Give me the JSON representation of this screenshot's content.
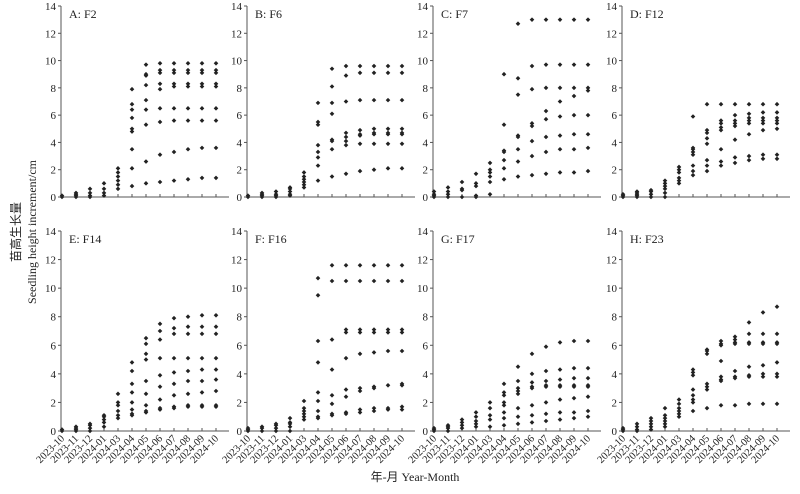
{
  "figure": {
    "ylabel_cn": "苗高生长量",
    "ylabel_en": "Seedling height increment/cm",
    "xlabel": "年-月 Year-Month",
    "categories": [
      "2023-10",
      "2023-11",
      "2023-12",
      "2024-01",
      "2024-03",
      "2024-04",
      "2024-05",
      "2024-06",
      "2024-07",
      "2024-08",
      "2024-09",
      "2024-10"
    ],
    "ylim": [
      0,
      14
    ],
    "yticks": [
      "0",
      "2",
      "4",
      "6",
      "8",
      "10",
      "12",
      "14"
    ],
    "marker_color": "#222222"
  },
  "chart_data": [
    {
      "type": "scatter",
      "title": "A: F2",
      "values": [
        [
          0,
          0.1
        ],
        [
          0,
          0.1,
          0.2,
          0.3
        ],
        [
          0,
          0.1,
          0.3,
          0.6
        ],
        [
          0.1,
          0.3,
          0.6,
          1.0
        ],
        [
          0.6,
          0.9,
          1.2,
          1.5,
          1.8,
          2.1
        ],
        [
          0.8,
          2.1,
          3.5,
          4.8,
          5,
          5.8,
          6.4,
          6.8,
          7.9
        ],
        [
          1,
          2.6,
          5.3,
          6.4,
          7.1,
          8.2,
          8.9,
          9,
          9.7
        ],
        [
          1.1,
          3.1,
          5.5,
          6.5,
          7.9,
          8.3,
          9.1,
          9.3,
          9.8
        ],
        [
          1.2,
          3.3,
          5.6,
          6.5,
          8.1,
          8.3,
          9.1,
          9.3,
          9.8
        ],
        [
          1.3,
          3.5,
          5.6,
          6.5,
          8.1,
          8.3,
          9.1,
          9.3,
          9.8
        ],
        [
          1.4,
          3.6,
          5.6,
          6.5,
          8.1,
          8.3,
          9.1,
          9.3,
          9.8
        ],
        [
          1.4,
          3.6,
          5.6,
          6.5,
          8.1,
          8.3,
          9.1,
          9.3,
          9.8
        ]
      ]
    },
    {
      "type": "scatter",
      "title": "B: F6",
      "values": [
        [
          0,
          0.1
        ],
        [
          0,
          0.1,
          0.2,
          0.3
        ],
        [
          0,
          0.1,
          0.2,
          0.4
        ],
        [
          0.1,
          0.2,
          0.4,
          0.6,
          0.7
        ],
        [
          0.7,
          0.9,
          1.1,
          1.3,
          1.5,
          1.8
        ],
        [
          1.2,
          2.3,
          2.9,
          3.3,
          3.8,
          5.3,
          5.5,
          6.9
        ],
        [
          1.5,
          3.5,
          4.1,
          4.2,
          6.1,
          6.9,
          8.1,
          9.4
        ],
        [
          1.7,
          3.8,
          4.1,
          4.4,
          4.7,
          7,
          8.9,
          9.6
        ],
        [
          1.9,
          3.9,
          4.5,
          4.6,
          4.9,
          7.1,
          9.1,
          9.6
        ],
        [
          2,
          3.9,
          4.6,
          4.7,
          5,
          7.1,
          9.1,
          9.6
        ],
        [
          2.1,
          3.9,
          4.6,
          4.7,
          5,
          7.1,
          9.1,
          9.6
        ],
        [
          2.1,
          3.9,
          4.6,
          4.7,
          5,
          7.1,
          9.1,
          9.6
        ]
      ]
    },
    {
      "type": "scatter",
      "title": "C: F7",
      "values": [
        [
          0,
          0.1,
          0.2,
          0.4
        ],
        [
          0,
          0.2,
          0.4,
          0.7
        ],
        [
          0,
          0.5,
          0.6,
          1.1
        ],
        [
          0,
          0.1,
          0.8,
          1,
          1.7
        ],
        [
          0.2,
          1.1,
          1.5,
          1.8,
          2,
          2.5
        ],
        [
          1.3,
          2.1,
          2.7,
          3.3,
          3.4,
          5.3,
          9
        ],
        [
          1.5,
          2.6,
          3.5,
          4.4,
          4.5,
          7.5,
          8.7,
          12.7
        ],
        [
          1.6,
          3,
          4.1,
          5.2,
          5.4,
          7.9,
          9.6,
          13
        ],
        [
          1.7,
          3.3,
          4.4,
          5.7,
          6.3,
          8,
          9.7,
          13
        ],
        [
          1.8,
          3.5,
          4.5,
          5.9,
          7,
          8,
          9.7,
          13
        ],
        [
          1.8,
          3.5,
          4.6,
          6,
          7.4,
          8,
          9.7,
          13
        ],
        [
          1.9,
          3.6,
          4.6,
          6,
          7.8,
          8,
          9.7,
          13
        ]
      ]
    },
    {
      "type": "scatter",
      "title": "D: F12",
      "values": [
        [
          0,
          0.1,
          0.2
        ],
        [
          0,
          0.1,
          0.2,
          0.3,
          0.4
        ],
        [
          0,
          0.2,
          0.4,
          0.5
        ],
        [
          0,
          0.3,
          0.6,
          0.8,
          1,
          1.2
        ],
        [
          1,
          1.2,
          1.4,
          1.8,
          2,
          2.2
        ],
        [
          1.6,
          1.9,
          2.3,
          3.1,
          3.3,
          3.5,
          3.6,
          5.9
        ],
        [
          1.9,
          2.3,
          2.7,
          3.9,
          4.3,
          4.7,
          4.9,
          6.8
        ],
        [
          2.3,
          2.6,
          3.5,
          4.9,
          5.1,
          5.4,
          5.6,
          6.8
        ],
        [
          2.5,
          2.9,
          4.2,
          5.2,
          5.4,
          5.6,
          6,
          6.8
        ],
        [
          2.7,
          3,
          4.6,
          5.4,
          5.6,
          5.8,
          6.1,
          6.8
        ],
        [
          2.8,
          3.1,
          4.9,
          5.4,
          5.6,
          5.8,
          6.2,
          6.8
        ],
        [
          2.8,
          3.1,
          5,
          5.4,
          5.6,
          5.8,
          6.2,
          6.8
        ]
      ]
    },
    {
      "type": "scatter",
      "title": "E: F14",
      "values": [
        [
          0,
          0.1
        ],
        [
          0,
          0.1,
          0.2,
          0.3
        ],
        [
          0,
          0.2,
          0.4,
          0.5
        ],
        [
          0.3,
          0.6,
          0.8,
          1,
          1.1
        ],
        [
          0.9,
          1.1,
          1.4,
          1.8,
          2,
          2.6
        ],
        [
          1.1,
          1.2,
          1.5,
          2,
          2.7,
          3.3,
          4.2,
          4.8
        ],
        [
          1.3,
          1.4,
          1.8,
          2.6,
          3.5,
          5,
          5.4,
          6.1,
          6.5
        ],
        [
          1.5,
          1.6,
          2.2,
          3.1,
          3.9,
          5.1,
          6.4,
          7,
          7.5
        ],
        [
          1.6,
          1.7,
          2.5,
          3.3,
          4.1,
          5.1,
          6.8,
          7.2,
          7.9
        ],
        [
          1.7,
          1.8,
          2.6,
          3.5,
          4.2,
          5.1,
          6.8,
          7.3,
          8
        ],
        [
          1.7,
          1.8,
          2.7,
          3.5,
          4.3,
          5.1,
          6.8,
          7.3,
          8.1
        ],
        [
          1.7,
          1.8,
          2.8,
          3.6,
          4.3,
          5.1,
          6.8,
          7.3,
          8.1
        ]
      ]
    },
    {
      "type": "scatter",
      "title": "F: F16",
      "values": [
        [
          0,
          0.1,
          0.2
        ],
        [
          0,
          0.2,
          0.3
        ],
        [
          0,
          0.2,
          0.4,
          0.5
        ],
        [
          0,
          0.3,
          0.5,
          0.6,
          0.9
        ],
        [
          0.8,
          1,
          1.2,
          1.4,
          1.6,
          2.1
        ],
        [
          0.9,
          1,
          1.4,
          2.1,
          2.7,
          4.8,
          6.3,
          9.5,
          10.7
        ],
        [
          1.1,
          1.2,
          1.9,
          2.5,
          4.3,
          6.4,
          10.5,
          11.6
        ],
        [
          1.2,
          1.3,
          2.4,
          2.9,
          5.1,
          6.9,
          7.1,
          10.5,
          11.6
        ],
        [
          1.3,
          1.5,
          2.8,
          3,
          5.4,
          6.9,
          7.1,
          10.5,
          11.6
        ],
        [
          1.4,
          1.6,
          3,
          3.1,
          5.5,
          6.9,
          7.1,
          10.5,
          11.6
        ],
        [
          1.5,
          1.6,
          3.2,
          5.6,
          6.9,
          7.1,
          10.5,
          11.6
        ],
        [
          1.5,
          1.7,
          3.2,
          3.3,
          5.6,
          6.9,
          7.1,
          10.5,
          11.6
        ]
      ]
    },
    {
      "type": "scatter",
      "title": "G: F17",
      "values": [
        [
          0,
          0.1,
          0.2
        ],
        [
          0,
          0.2,
          0.3,
          0.4
        ],
        [
          0.2,
          0.4,
          0.6,
          0.8
        ],
        [
          0.3,
          0.5,
          0.7,
          1,
          1.3
        ],
        [
          0.3,
          0.8,
          1.1,
          1.6,
          2
        ],
        [
          0.4,
          0.9,
          1.3,
          1.8,
          2,
          2.5,
          2.7,
          3.3
        ],
        [
          0.5,
          1,
          1.6,
          2.6,
          2.8,
          3,
          3.5,
          4.5
        ],
        [
          0.6,
          1.1,
          1.8,
          3,
          3.1,
          3.4,
          4,
          5.4
        ],
        [
          0.7,
          1.2,
          2,
          3.1,
          3.2,
          3.5,
          4.2,
          5.9
        ],
        [
          0.8,
          1.3,
          2.2,
          3.1,
          3.2,
          3.6,
          4.3,
          6.2
        ],
        [
          0.9,
          1.3,
          2.3,
          3.1,
          3.2,
          3.7,
          4.4,
          6.3
        ],
        [
          1,
          1.4,
          2.4,
          3.1,
          3.2,
          3.7,
          4.4,
          6.3
        ]
      ]
    },
    {
      "type": "scatter",
      "title": "H: F23",
      "values": [
        [
          0,
          0.1,
          0.2
        ],
        [
          0,
          0.1,
          0.3,
          0.5
        ],
        [
          0.1,
          0.3,
          0.5,
          0.7,
          0.9
        ],
        [
          0.3,
          0.5,
          0.7,
          0.9,
          1.1,
          1.6
        ],
        [
          1,
          1.2,
          1.4,
          1.6,
          1.9,
          2.2
        ],
        [
          1.4,
          2,
          2.2,
          2.5,
          2.9,
          3.9,
          4.1,
          4.3
        ],
        [
          1.6,
          2.9,
          3.1,
          3.3,
          5.4,
          5.6,
          5.7
        ],
        [
          1.8,
          3.5,
          3.6,
          3.8,
          4.9,
          6,
          6.1,
          6.3
        ],
        [
          1.8,
          3.7,
          3.8,
          4.2,
          6.1,
          6.2,
          6.4,
          6.6
        ],
        [
          1.9,
          3.8,
          3.9,
          4.5,
          6.1,
          6.2,
          6.8,
          7.6
        ],
        [
          1.9,
          3.8,
          4,
          4.6,
          6.1,
          6.2,
          6.8,
          8.3
        ],
        [
          1.9,
          3.8,
          4,
          4.8,
          6.1,
          6.2,
          6.8,
          8.7
        ]
      ]
    }
  ]
}
